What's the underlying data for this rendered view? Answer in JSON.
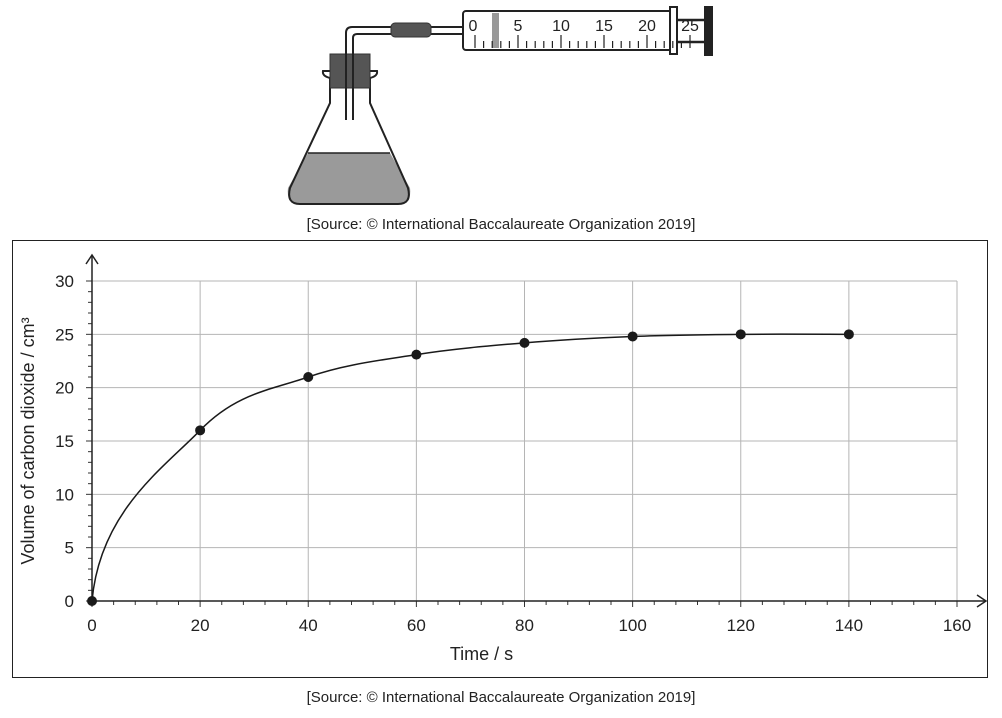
{
  "apparatus": {
    "syringe_scale_labels": [
      "0",
      "5",
      "10",
      "15",
      "20",
      "25"
    ]
  },
  "sources": {
    "top": "[Source: © International Baccalaureate Organization 2019]",
    "bottom": "[Source: © International Baccalaureate Organization 2019]"
  },
  "chart_data": {
    "type": "scatter",
    "title": "",
    "xlabel": "Time / s",
    "ylabel": "Volume of carbon dioxide / cm³",
    "xlim": [
      0,
      160
    ],
    "ylim": [
      0,
      30
    ],
    "x_ticks": [
      0,
      20,
      40,
      60,
      80,
      100,
      120,
      140,
      160
    ],
    "y_ticks": [
      0,
      5,
      10,
      15,
      20,
      25,
      30
    ],
    "grid": true,
    "series": [
      {
        "x": [
          0,
          20,
          40,
          60,
          80,
          100,
          120,
          140
        ],
        "y": [
          0,
          16,
          21,
          23.1,
          24.2,
          24.8,
          25,
          25
        ],
        "smooth_curve": true,
        "color": "#1a1a1a"
      }
    ]
  }
}
